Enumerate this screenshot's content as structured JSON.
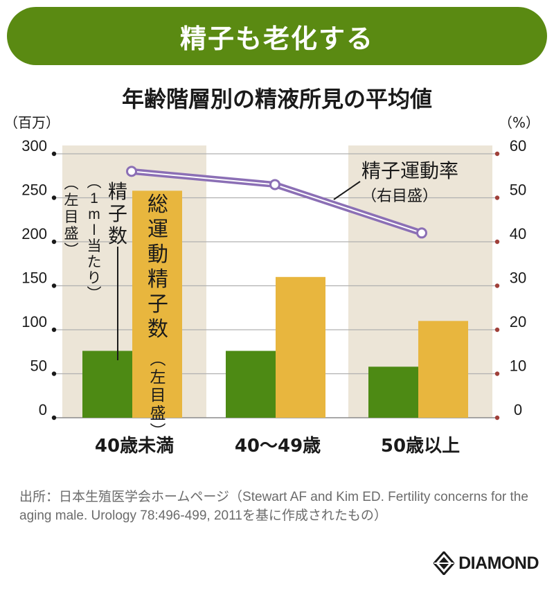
{
  "banner_title": "精子も老化する",
  "chart_data": {
    "type": "bar",
    "title": "年齢階層別の精液所見の平均値",
    "categories": [
      "40歳未満",
      "40〜49歳",
      "50歳以上"
    ],
    "left_unit": "（百万）",
    "right_unit": "（%）",
    "left_ticks": [
      "0",
      "50",
      "100",
      "150",
      "200",
      "250",
      "300"
    ],
    "right_ticks": [
      "0",
      "10",
      "20",
      "30",
      "40",
      "50",
      "60"
    ],
    "ylim_left": [
      0,
      300
    ],
    "ylim_right": [
      0,
      60
    ],
    "series": [
      {
        "name": "精子数（1ml当たり）（左目盛）",
        "axis": "left",
        "color": "#4d8a14",
        "values": [
          76,
          76,
          58
        ]
      },
      {
        "name": "総運動精子数（左目盛）",
        "axis": "left",
        "color": "#e8b63e",
        "values": [
          258,
          160,
          110
        ]
      },
      {
        "name": "精子運動率（右目盛）",
        "axis": "right",
        "type": "line",
        "color": "#8b6fb5",
        "values": [
          56,
          53,
          42
        ]
      }
    ],
    "labels": {
      "sperm_count_main": "精子数",
      "sperm_count_paren": "（1ml当たり）",
      "left_scale_paren": "（左目盛）",
      "total_motile": "総運動精子数",
      "total_motile_paren": "（左目盛）",
      "motility_main": "精子運動率",
      "motility_paren": "（右目盛）"
    },
    "grid": true
  },
  "source_text": "出所：日本生殖医学会ホームページ（Stewart AF and Kim ED. Fertility concerns for the aging male. Urology 78:496-499, 2011を基に作成された​もの）",
  "logo_text": "DIAMOND"
}
